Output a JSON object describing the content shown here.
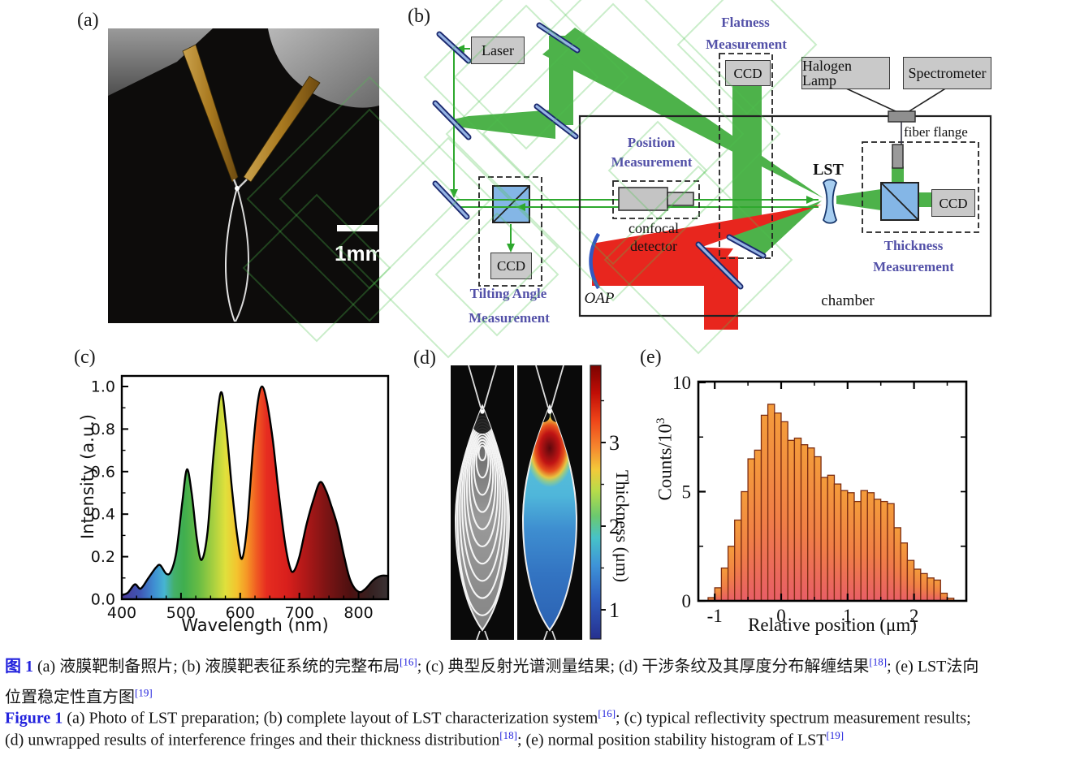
{
  "panels": {
    "a_label": "(a)",
    "b_label": "(b)",
    "c_label": "(c)",
    "d_label": "(d)",
    "e_label": "(e)"
  },
  "photo": {
    "scale_bar": "1mm"
  },
  "diagram": {
    "laser": "Laser",
    "ccd": "CCD",
    "halogen_lamp": "Halogen Lamp",
    "spectrometer": "Spectrometer",
    "flatness": [
      "Flatness",
      "Measurement"
    ],
    "position": [
      "Position",
      "Measurement"
    ],
    "tilting": [
      "Tilting Angle",
      "Measurement"
    ],
    "thickness": [
      "Thickness",
      "Measurement"
    ],
    "confocal_detector": "confocal detector",
    "fiber_flange": "fiber flange",
    "lst": "LST",
    "oap": "OAP",
    "chamber": "chamber",
    "colors": {
      "beam_green": "#4db24a",
      "beam_green_line": "#2ea82e",
      "beam_red": "#e8261e",
      "label_blue": "#5351a8",
      "mirror_blue": "#96b4e4",
      "mirror_edge": "#1c2a70",
      "cube_blue": "#84b6e6",
      "box_gray": "#c9c9c9",
      "watermark_green": "#4fc24f"
    }
  },
  "chart_data": [
    {
      "id": "reflectivity-spectrum",
      "panel": "c",
      "type": "area",
      "xlabel": "Wavelength (nm)",
      "ylabel": "Intensity (a.u.)",
      "xlim": [
        400,
        850
      ],
      "ylim": [
        0,
        1.05
      ],
      "xticks": [
        400,
        500,
        600,
        700,
        800
      ],
      "xtick_labels": [
        "400",
        "500",
        "600",
        "700",
        "800"
      ],
      "yticks": [
        0,
        0.2,
        0.4,
        0.6,
        0.8,
        1.0
      ],
      "ytick_labels": [
        "0.0",
        "0.2",
        "0.4",
        "0.6",
        "0.8",
        "1.0"
      ],
      "x": [
        400,
        410,
        422,
        432,
        445,
        458,
        465,
        475,
        483,
        492,
        502,
        510,
        518,
        527,
        535,
        545,
        555,
        567,
        576,
        586,
        595,
        603,
        612,
        622,
        630,
        637,
        645,
        655,
        665,
        675,
        683,
        690,
        700,
        712,
        724,
        735,
        745,
        755,
        765,
        775,
        786,
        800,
        812,
        825,
        838,
        850
      ],
      "y": [
        0.02,
        0.03,
        0.07,
        0.05,
        0.1,
        0.15,
        0.16,
        0.12,
        0.13,
        0.22,
        0.45,
        0.61,
        0.5,
        0.28,
        0.185,
        0.32,
        0.68,
        0.97,
        0.82,
        0.52,
        0.3,
        0.19,
        0.35,
        0.72,
        0.93,
        1.0,
        0.93,
        0.75,
        0.5,
        0.28,
        0.16,
        0.13,
        0.2,
        0.35,
        0.47,
        0.55,
        0.51,
        0.43,
        0.34,
        0.21,
        0.09,
        0.035,
        0.05,
        0.09,
        0.11,
        0.11
      ],
      "line_color": "#000000",
      "gradient": [
        [
          400,
          "#4a3a9a"
        ],
        [
          430,
          "#3f55b4"
        ],
        [
          455,
          "#3f8fd2"
        ],
        [
          472,
          "#46b4d2"
        ],
        [
          488,
          "#44b06a"
        ],
        [
          505,
          "#3fae4e"
        ],
        [
          530,
          "#68bc44"
        ],
        [
          555,
          "#a8d040"
        ],
        [
          575,
          "#e0e03c"
        ],
        [
          595,
          "#f4c32e"
        ],
        [
          612,
          "#f59426"
        ],
        [
          628,
          "#f05a22"
        ],
        [
          645,
          "#e62c20"
        ],
        [
          680,
          "#d81f1c"
        ],
        [
          710,
          "#b01818"
        ],
        [
          745,
          "#7d1414"
        ],
        [
          785,
          "#4e1010"
        ],
        [
          820,
          "#352020"
        ],
        [
          850,
          "#3a3234"
        ]
      ]
    },
    {
      "id": "thickness-map",
      "panel": "d",
      "type": "heatmap",
      "left_image": "interference fringes",
      "right_image": "unwrapped thickness map",
      "colorbar_label": "Thickness (μm)",
      "colorbar_ticks": [
        1,
        2,
        3
      ],
      "colorbar_tick_labels": [
        "1",
        "2",
        "3"
      ],
      "colormap": "jet",
      "value_range": [
        0.7,
        3.9
      ],
      "colormap_stops": [
        [
          0,
          "#7a0300"
        ],
        [
          0.1,
          "#c00d06"
        ],
        [
          0.2,
          "#ee4418"
        ],
        [
          0.3,
          "#f6872e"
        ],
        [
          0.38,
          "#f3c93a"
        ],
        [
          0.46,
          "#b6dc4a"
        ],
        [
          0.55,
          "#6cc96e"
        ],
        [
          0.63,
          "#47c2c8"
        ],
        [
          0.73,
          "#3e94d8"
        ],
        [
          0.85,
          "#2f5fc0"
        ],
        [
          1,
          "#26308f"
        ]
      ]
    },
    {
      "id": "position-histogram",
      "panel": "e",
      "type": "bar",
      "xlabel": "Relative position (μm)",
      "ylabel_base": "Counts/10",
      "ylabel_sup": "3",
      "xlim": [
        -1.25,
        2.8
      ],
      "ylim": [
        0,
        10
      ],
      "xticks": [
        -1,
        0,
        1,
        2
      ],
      "xtick_labels": [
        "-1",
        "0",
        "1",
        "2"
      ],
      "yticks": [
        0,
        5,
        10
      ],
      "ytick_labels": [
        "0",
        "5",
        "10"
      ],
      "bin_width": 0.1,
      "bin_centers": [
        -1.05,
        -0.95,
        -0.85,
        -0.75,
        -0.65,
        -0.55,
        -0.45,
        -0.35,
        -0.25,
        -0.15,
        -0.05,
        0.05,
        0.15,
        0.25,
        0.35,
        0.45,
        0.55,
        0.65,
        0.75,
        0.85,
        0.95,
        1.05,
        1.15,
        1.25,
        1.35,
        1.45,
        1.55,
        1.65,
        1.75,
        1.85,
        1.95,
        2.05,
        2.15,
        2.25,
        2.35,
        2.45,
        2.55
      ],
      "values": [
        0.15,
        0.6,
        1.5,
        2.5,
        3.7,
        5.0,
        6.5,
        6.9,
        8.5,
        9.0,
        8.6,
        8.2,
        7.35,
        7.45,
        7.15,
        7.0,
        6.6,
        5.65,
        5.75,
        5.35,
        5.05,
        4.95,
        4.55,
        5.05,
        4.95,
        4.65,
        4.55,
        4.45,
        3.35,
        2.65,
        1.85,
        1.45,
        1.25,
        1.05,
        0.95,
        0.35,
        0.12
      ],
      "bar_gradient": [
        "#f49c3b",
        "#f08046",
        "#e85e67"
      ],
      "bar_outline": "#7c2d12"
    }
  ],
  "caption": {
    "label_color": "#2222dd",
    "lines": [
      [
        {
          "t": "图 1",
          "b": 1
        },
        {
          "t": "  (a) 液膜靶制备照片; (b) 液膜靶表征系统的完整布局"
        },
        {
          "t": "[16]",
          "s": 1
        },
        {
          "t": "; (c) 典型反射光谱测量结果; (d) 干涉条纹及其厚度分布解缠结果"
        },
        {
          "t": "[18]",
          "s": 1
        },
        {
          "t": "; (e) LST法向"
        }
      ],
      [
        {
          "t": "位置稳定性直方图"
        },
        {
          "t": "[19]",
          "s": 1
        }
      ],
      [
        {
          "t": "Figure 1",
          "b": 1
        },
        {
          "t": "  (a) Photo of LST preparation; (b) complete layout of LST characterization system"
        },
        {
          "t": "[16]",
          "s": 1
        },
        {
          "t": "; (c) typical reflectivity spectrum measurement results;"
        }
      ],
      [
        {
          "t": "(d) unwrapped results of interference fringes and their thickness distribution"
        },
        {
          "t": "[18]",
          "s": 1
        },
        {
          "t": "; (e) normal position stability histogram of LST"
        },
        {
          "t": "[19]",
          "s": 1
        }
      ]
    ],
    "line_tops": [
      804,
      842,
      871,
      898
    ]
  }
}
